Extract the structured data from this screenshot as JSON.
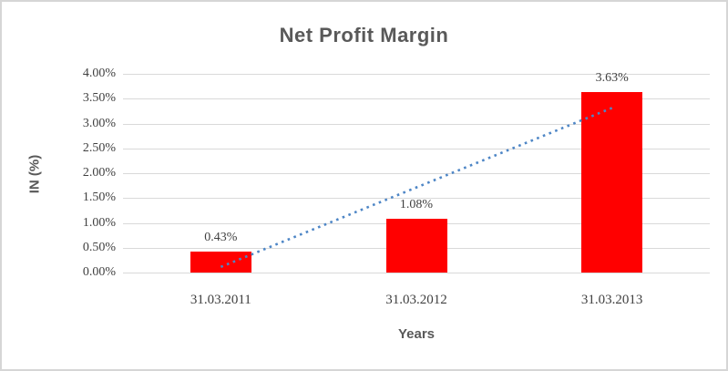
{
  "frame": {
    "background": "#ffffff",
    "border_color": "#d6d6d6"
  },
  "chart_data": {
    "type": "bar",
    "title": "Net Profit Margin",
    "categories": [
      "31.03.2011",
      "31.03.2012",
      "31.03.2013"
    ],
    "values": [
      0.43,
      1.08,
      3.63
    ],
    "data_labels": [
      "0.43%",
      "1.08%",
      "3.63%"
    ],
    "xlabel": "Years",
    "ylabel": "IN (%)",
    "ylim": [
      0,
      4
    ],
    "ytick_step": 0.5,
    "ytick_labels": [
      "0.00%",
      "0.50%",
      "1.00%",
      "1.50%",
      "2.00%",
      "2.50%",
      "3.00%",
      "3.50%",
      "4.00%"
    ],
    "grid": true,
    "legend": "none",
    "bar_color": "#ff0000",
    "gridline_color": "#d9d9d9",
    "title_color": "#595959",
    "tick_label_color": "#404040",
    "trendline": {
      "type": "linear",
      "style": "dotted",
      "color": "#4e86c6"
    }
  }
}
